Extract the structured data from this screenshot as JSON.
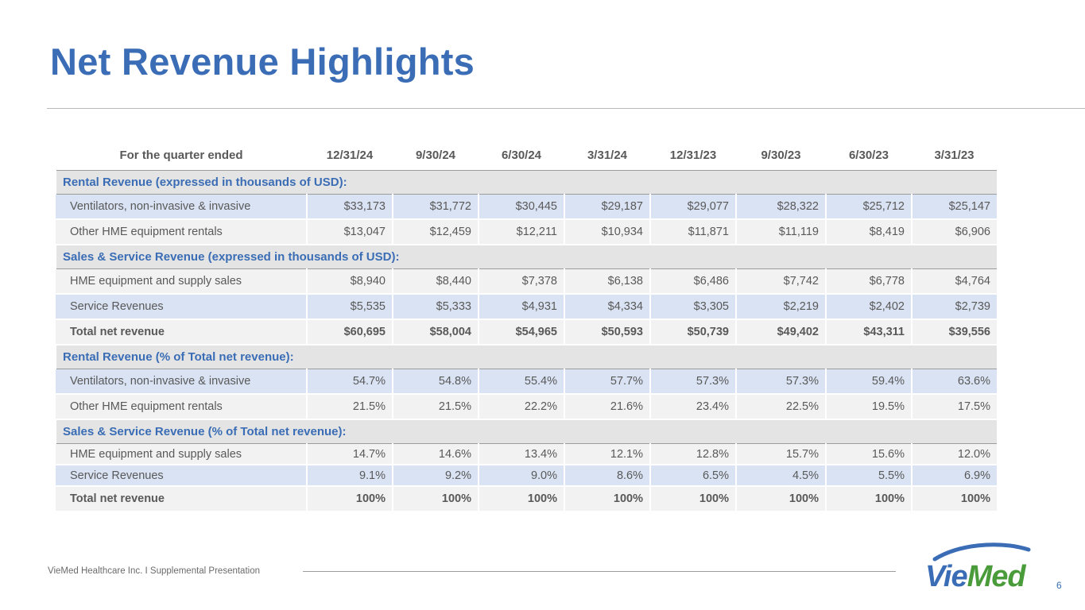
{
  "header": {
    "title": "Net Revenue Highlights"
  },
  "table": {
    "label_header": "For the quarter ended",
    "periods": [
      "12/31/24",
      "9/30/24",
      "6/30/24",
      "3/31/24",
      "12/31/23",
      "9/30/23",
      "6/30/23",
      "3/31/23"
    ],
    "sections": [
      {
        "title": "Rental Revenue (expressed in thousands of USD):",
        "rows": [
          {
            "label": "Ventilators, non-invasive & invasive",
            "values": [
              "$33,173",
              "$31,772",
              "$30,445",
              "$29,187",
              "$29,077",
              "$28,322",
              "$25,712",
              "$25,147"
            ]
          },
          {
            "label": "Other HME equipment rentals",
            "values": [
              "$13,047",
              "$12,459",
              "$12,211",
              "$10,934",
              "$11,871",
              "$11,119",
              "$8,419",
              "$6,906"
            ]
          }
        ]
      },
      {
        "title": "Sales & Service Revenue (expressed in thousands of USD):",
        "rows": [
          {
            "label": "HME equipment and supply sales",
            "values": [
              "$8,940",
              "$8,440",
              "$7,378",
              "$6,138",
              "$6,486",
              "$7,742",
              "$6,778",
              "$4,764"
            ]
          },
          {
            "label": "Service Revenues",
            "values": [
              "$5,535",
              "$5,333",
              "$4,931",
              "$4,334",
              "$3,305",
              "$2,219",
              "$2,402",
              "$2,739"
            ]
          },
          {
            "label": "Total net revenue",
            "values": [
              "$60,695",
              "$58,004",
              "$54,965",
              "$50,593",
              "$50,739",
              "$49,402",
              "$43,311",
              "$39,556"
            ]
          }
        ]
      },
      {
        "title": "Rental Revenue (% of Total net revenue):",
        "rows": [
          {
            "label": "Ventilators, non-invasive & invasive",
            "values": [
              "54.7%",
              "54.8%",
              "55.4%",
              "57.7%",
              "57.3%",
              "57.3%",
              "59.4%",
              "63.6%"
            ]
          },
          {
            "label": "Other HME equipment rentals",
            "values": [
              "21.5%",
              "21.5%",
              "22.2%",
              "21.6%",
              "23.4%",
              "22.5%",
              "19.5%",
              "17.5%"
            ]
          }
        ]
      },
      {
        "title": "Sales & Service Revenue (% of Total net revenue):",
        "rows": [
          {
            "label": "HME equipment and supply sales",
            "values": [
              "14.7%",
              "14.6%",
              "13.4%",
              "12.1%",
              "12.8%",
              "15.7%",
              "15.6%",
              "12.0%"
            ]
          },
          {
            "label": "Service Revenues",
            "values": [
              "9.1%",
              "9.2%",
              "9.0%",
              "8.6%",
              "6.5%",
              "4.5%",
              "5.5%",
              "6.9%"
            ]
          },
          {
            "label": "Total net revenue",
            "values": [
              "100%",
              "100%",
              "100%",
              "100%",
              "100%",
              "100%",
              "100%",
              "100%"
            ]
          }
        ]
      }
    ]
  },
  "footer": {
    "text": "VieMed Healthcare Inc.  I  Supplemental Presentation",
    "page_number": "6"
  },
  "logo": {
    "text": "VieMed",
    "colors": {
      "vie": "#3a6db5",
      "med": "#4a9c3b"
    }
  },
  "colors": {
    "accent": "#3a6db5",
    "section_bg": "#e4e4e4",
    "row_blue": "#dae3f3",
    "row_light": "#f2f2f2"
  }
}
